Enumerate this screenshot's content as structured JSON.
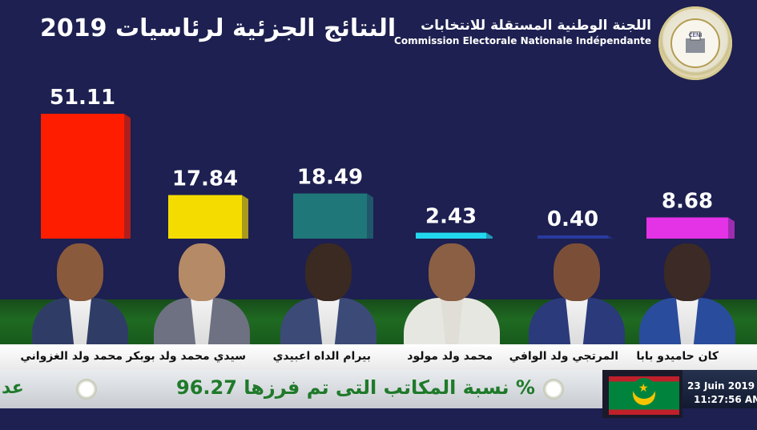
{
  "header": {
    "title": "النتائج الجزئية لرئاسيات 2019",
    "commission_ar": "اللجنة الوطنية المستقلة للانتخابات",
    "commission_fr": "Commission Electorale Nationale Indépendante",
    "logo_text": "CENI"
  },
  "chart_data": {
    "type": "bar",
    "title": "النتائج الجزئية لرئاسيات 2019",
    "categories": [
      "محمد ولد الغزواني",
      "سيدي محمد ولد بوبكر",
      "بيرام الداه اعبيدي",
      "محمد ولد مولود",
      "المرتجي ولد الوافي",
      "كان حاميدو بابا"
    ],
    "value_labels": [
      "51.11",
      "17.84",
      "18.49",
      "2.43",
      "0.40",
      "8.68"
    ],
    "series": [
      {
        "values": [
          51.11,
          17.84,
          18.49,
          2.43,
          0.4,
          8.68
        ]
      }
    ],
    "colors": [
      "#ff1d00",
      "#f5dc00",
      "#20777a",
      "#22d8ee",
      "#2a3aa0",
      "#e432e6"
    ],
    "ylim": [
      0,
      55
    ],
    "grid": false,
    "legend": "none"
  },
  "ticker": {
    "text": "نسبة المكاتب التى تم فرزها 96.27 %",
    "left_fragment": "عد"
  },
  "datetime": {
    "date": "23  Juin 2019",
    "time": "11:27:56 AM"
  }
}
